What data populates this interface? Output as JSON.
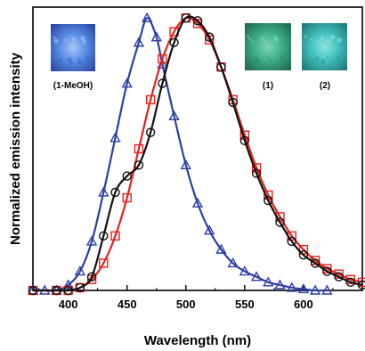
{
  "chart_data": {
    "type": "line",
    "title": "",
    "xlabel": "Wavelength (nm)",
    "ylabel": "Normalized emission intensity",
    "xlim": [
      370,
      650
    ],
    "ylim": [
      0,
      1.04
    ],
    "x_ticks": [
      400,
      450,
      500,
      550,
      600
    ],
    "y_ticks_shown": false,
    "grid": false,
    "series": [
      {
        "name": "(1-MeOH)",
        "color": "#2c3fa3",
        "marker": "triangle",
        "points": [
          [
            370,
            0
          ],
          [
            380,
            0
          ],
          [
            390,
            0
          ],
          [
            400,
            0.02
          ],
          [
            410,
            0.07
          ],
          [
            420,
            0.18
          ],
          [
            430,
            0.36
          ],
          [
            440,
            0.56
          ],
          [
            450,
            0.76
          ],
          [
            460,
            0.91
          ],
          [
            467,
            1.0
          ],
          [
            475,
            0.93
          ],
          [
            480,
            0.83
          ],
          [
            490,
            0.64
          ],
          [
            500,
            0.46
          ],
          [
            510,
            0.32
          ],
          [
            520,
            0.22
          ],
          [
            530,
            0.15
          ],
          [
            540,
            0.1
          ],
          [
            550,
            0.07
          ],
          [
            560,
            0.05
          ],
          [
            570,
            0.03
          ],
          [
            580,
            0.02
          ],
          [
            590,
            0.01
          ],
          [
            600,
            0.005
          ],
          [
            610,
            0
          ],
          [
            620,
            0
          ]
        ]
      },
      {
        "name": "(1)",
        "color": "#e8201c",
        "marker": "square",
        "points": [
          [
            370,
            0
          ],
          [
            390,
            0
          ],
          [
            400,
            0
          ],
          [
            410,
            0.01
          ],
          [
            420,
            0.04
          ],
          [
            430,
            0.1
          ],
          [
            440,
            0.2
          ],
          [
            450,
            0.34
          ],
          [
            460,
            0.52
          ],
          [
            470,
            0.7
          ],
          [
            480,
            0.85
          ],
          [
            490,
            0.95
          ],
          [
            500,
            1.0
          ],
          [
            510,
            0.98
          ],
          [
            520,
            0.92
          ],
          [
            530,
            0.82
          ],
          [
            540,
            0.7
          ],
          [
            550,
            0.57
          ],
          [
            560,
            0.45
          ],
          [
            570,
            0.35
          ],
          [
            580,
            0.27
          ],
          [
            590,
            0.2
          ],
          [
            600,
            0.15
          ],
          [
            610,
            0.11
          ],
          [
            620,
            0.08
          ],
          [
            630,
            0.06
          ],
          [
            640,
            0.04
          ],
          [
            650,
            0.03
          ]
        ]
      },
      {
        "name": "(2)",
        "color": "#111111",
        "marker": "circle",
        "points": [
          [
            370,
            0
          ],
          [
            390,
            0
          ],
          [
            400,
            0
          ],
          [
            410,
            0.01
          ],
          [
            420,
            0.05
          ],
          [
            430,
            0.2
          ],
          [
            440,
            0.36
          ],
          [
            450,
            0.42
          ],
          [
            460,
            0.46
          ],
          [
            470,
            0.58
          ],
          [
            480,
            0.76
          ],
          [
            490,
            0.91
          ],
          [
            500,
            1.0
          ],
          [
            510,
            0.99
          ],
          [
            520,
            0.93
          ],
          [
            530,
            0.82
          ],
          [
            540,
            0.69
          ],
          [
            550,
            0.55
          ],
          [
            560,
            0.43
          ],
          [
            570,
            0.33
          ],
          [
            580,
            0.25
          ],
          [
            590,
            0.18
          ],
          [
            600,
            0.13
          ],
          [
            610,
            0.1
          ],
          [
            620,
            0.07
          ],
          [
            630,
            0.05
          ],
          [
            640,
            0.03
          ],
          [
            650,
            0.02
          ]
        ]
      }
    ],
    "insets": [
      {
        "label": "(1-MeOH)",
        "colors": [
          "#5b8ee6",
          "#3a63c8",
          "#a9c6f5",
          "#2b4aa6"
        ]
      },
      {
        "label": "(1)",
        "colors": [
          "#3fb18c",
          "#2a8c6a",
          "#7fd4b4",
          "#1f6b52"
        ]
      },
      {
        "label": "(2)",
        "colors": [
          "#44c3c0",
          "#2b9a99",
          "#8fe3de",
          "#1f7b7a"
        ]
      }
    ]
  }
}
